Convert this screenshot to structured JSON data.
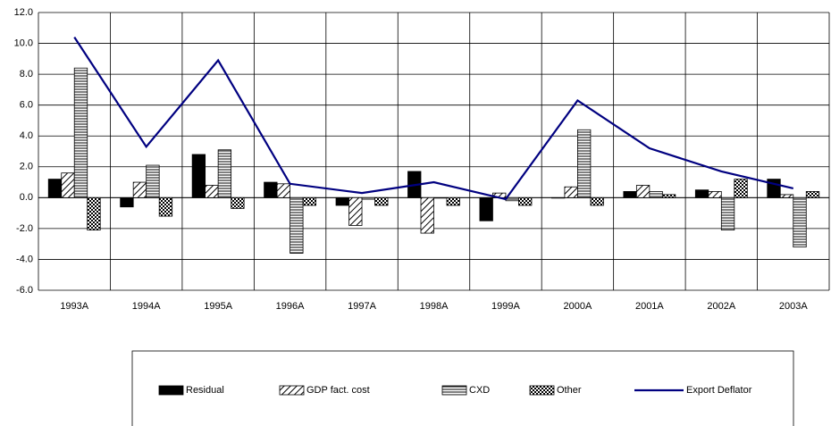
{
  "chart_data": {
    "type": "bar",
    "categories": [
      "1993A",
      "1994A",
      "1995A",
      "1996A",
      "1997A",
      "1998A",
      "1999A",
      "2000A",
      "2001A",
      "2002A",
      "2003A"
    ],
    "series": [
      {
        "name": "Residual",
        "type": "bar",
        "color": "#000000",
        "pattern": "solid",
        "values": [
          1.2,
          -0.6,
          2.8,
          1.0,
          -0.5,
          1.7,
          -1.5,
          0.0,
          0.4,
          0.5,
          1.2
        ]
      },
      {
        "name": "GDP fact. cost",
        "type": "bar",
        "color": "#000000",
        "pattern": "diagonal",
        "values": [
          1.6,
          1.0,
          0.8,
          0.9,
          -1.8,
          -2.3,
          0.3,
          0.7,
          0.8,
          0.4,
          0.2
        ]
      },
      {
        "name": "CXD",
        "type": "bar",
        "color": "#000000",
        "pattern": "horizontal",
        "values": [
          8.4,
          2.1,
          3.1,
          -3.6,
          -0.1,
          0.0,
          -0.2,
          4.4,
          0.4,
          -2.1,
          -3.2
        ]
      },
      {
        "name": "Other",
        "type": "bar",
        "color": "#000000",
        "pattern": "checker",
        "values": [
          -2.1,
          -1.2,
          -0.7,
          -0.5,
          -0.5,
          -0.5,
          -0.5,
          -0.5,
          0.2,
          1.2,
          0.4
        ]
      },
      {
        "name": "Export Deflator",
        "type": "line",
        "color": "#000080",
        "values": [
          10.4,
          3.3,
          8.9,
          0.9,
          0.3,
          1.0,
          -0.1,
          6.3,
          3.2,
          1.7,
          0.6
        ]
      }
    ],
    "ylim": [
      -6,
      12
    ],
    "yticks": [
      {
        "value": -6,
        "label": "-6.0"
      },
      {
        "value": -4,
        "label": "-4.0"
      },
      {
        "value": -2,
        "label": "-2.0"
      },
      {
        "value": 0,
        "label": "0.0"
      },
      {
        "value": 2,
        "label": "2.0"
      },
      {
        "value": 4,
        "label": "4.0"
      },
      {
        "value": 6,
        "label": "6.0"
      },
      {
        "value": 8,
        "label": "8.0"
      },
      {
        "value": 10,
        "label": "10.0"
      },
      {
        "value": 12,
        "label": "12.0"
      }
    ],
    "grid": true,
    "legend": "bottom"
  }
}
